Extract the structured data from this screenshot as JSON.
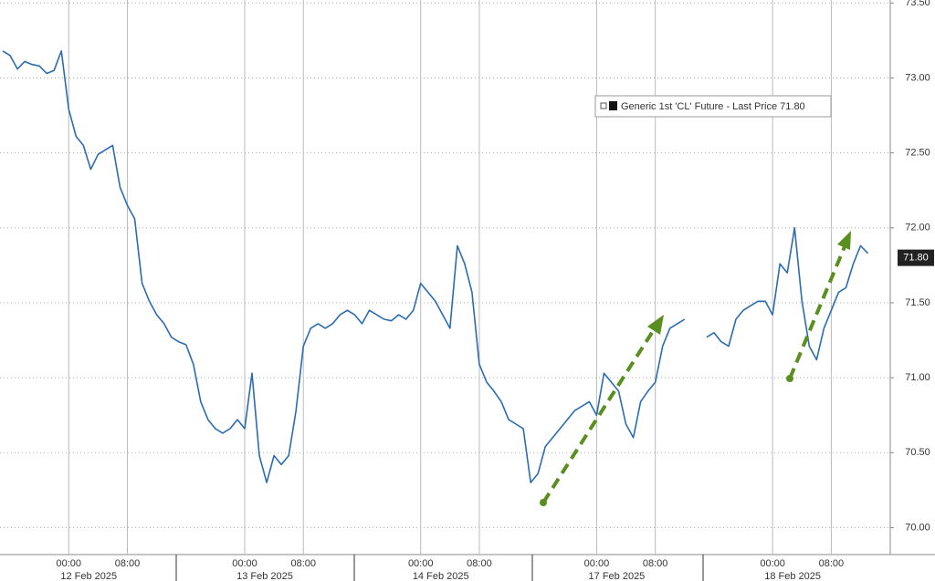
{
  "chart_data": {
    "type": "line",
    "categories": [
      null,
      null,
      null,
      null,
      null,
      null,
      null,
      null,
      null,
      "00:00",
      null,
      null,
      null,
      null,
      null,
      null,
      null,
      "08:00",
      null,
      null,
      null,
      null,
      null,
      null,
      null,
      null,
      null,
      null,
      null,
      null,
      null,
      null,
      null,
      "00:00",
      null,
      null,
      null,
      null,
      null,
      null,
      null,
      "08:00",
      null,
      null,
      null,
      null,
      null,
      null,
      null,
      null,
      null,
      null,
      null,
      null,
      null,
      null,
      null,
      "00:00",
      null,
      null,
      null,
      null,
      null,
      null,
      null,
      "08:00",
      null,
      null,
      null,
      null,
      null,
      null,
      null,
      null,
      null,
      null,
      null,
      null,
      null,
      null,
      null,
      "00:00",
      null,
      null,
      null,
      null,
      null,
      null,
      null,
      "08:00",
      null,
      null,
      null,
      null,
      null,
      null,
      null,
      null,
      null,
      null,
      null,
      null,
      null,
      null,
      null,
      "00:00",
      null,
      null,
      null,
      null,
      null,
      null,
      null,
      "08:00",
      null,
      null,
      null,
      null,
      null
    ],
    "dates": [
      "12 Feb 2025",
      "13 Feb 2025",
      "14 Feb 2025",
      "17 Feb 2025",
      "18 Feb 2025"
    ],
    "series": [
      {
        "name": "Generic 1st 'CL' Future - Last Price 71.80",
        "color": "#2b6cb0",
        "values": [
          73.18,
          73.15,
          73.06,
          73.11,
          73.09,
          73.08,
          73.03,
          73.05,
          73.18,
          72.79,
          72.61,
          72.55,
          72.39,
          72.49,
          72.52,
          72.55,
          72.27,
          72.15,
          72.06,
          71.63,
          71.51,
          71.42,
          71.36,
          71.27,
          71.24,
          71.22,
          71.09,
          70.84,
          70.72,
          70.66,
          70.63,
          70.66,
          70.72,
          70.66,
          71.03,
          70.48,
          70.3,
          70.48,
          70.42,
          70.48,
          70.78,
          71.21,
          71.33,
          71.36,
          71.33,
          71.36,
          71.42,
          71.45,
          71.42,
          71.36,
          71.45,
          71.42,
          71.39,
          71.38,
          71.42,
          71.39,
          71.45,
          71.63,
          71.57,
          71.51,
          71.42,
          71.33,
          71.88,
          71.76,
          71.57,
          71.09,
          70.97,
          70.91,
          70.84,
          70.72,
          70.69,
          70.66,
          70.3,
          70.36,
          70.54,
          70.6,
          70.66,
          70.72,
          70.78,
          70.81,
          70.84,
          70.75,
          71.03,
          70.97,
          70.91,
          70.69,
          70.6,
          70.84,
          70.91,
          70.97,
          71.21,
          71.33,
          71.36,
          71.39,
          null,
          null,
          71.27,
          71.3,
          71.24,
          71.21,
          71.39,
          71.45,
          71.48,
          71.51,
          71.51,
          71.42,
          71.76,
          71.7,
          72.0,
          71.51,
          71.21,
          71.12,
          71.33,
          71.45,
          71.57,
          71.6,
          71.76,
          71.88,
          71.83
        ]
      }
    ],
    "last_price": {
      "value": 71.8,
      "label": "71.80"
    },
    "ylim": [
      69.82,
      73.52
    ],
    "yticks": [
      {
        "value": 70,
        "label": "70.00"
      },
      {
        "value": 70.5,
        "label": "70.50"
      },
      {
        "value": 71,
        "label": "71.00"
      },
      {
        "value": 71.5,
        "label": "71.50"
      },
      {
        "value": 72,
        "label": "72.00"
      },
      {
        "value": 72.5,
        "label": "72.50"
      },
      {
        "value": 73,
        "label": "73.00"
      },
      {
        "value": 73.5,
        "label": "73.50"
      }
    ],
    "grid": true
  }
}
